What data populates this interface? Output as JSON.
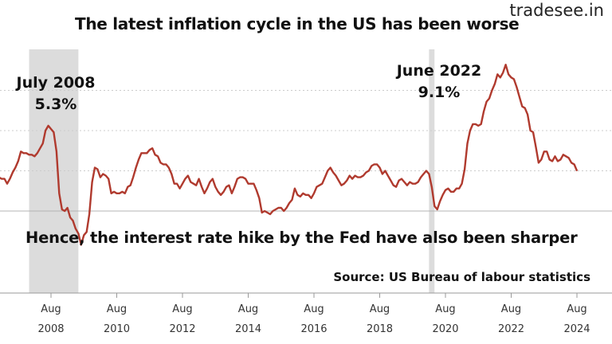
{
  "brand": "tradesee.in",
  "chart_data": {
    "type": "line",
    "title": "The latest inflation cycle in the US has been worse",
    "subtitle": "Hence, the interest rate hike by the Fed have also been sharper",
    "source": "Source: US Bureau of labour statistics",
    "xlabel": "",
    "ylabel": "",
    "x_tick_labels": [
      {
        "month": "Aug",
        "year": "2008"
      },
      {
        "month": "Aug",
        "year": "2010"
      },
      {
        "month": "Aug",
        "year": "2012"
      },
      {
        "month": "Aug",
        "year": "2014"
      },
      {
        "month": "Aug",
        "year": "2016"
      },
      {
        "month": "Aug",
        "year": "2018"
      },
      {
        "month": "Aug",
        "year": "2020"
      },
      {
        "month": "Aug",
        "year": "2022"
      },
      {
        "month": "Aug",
        "year": "2024"
      }
    ],
    "xlim": [
      "2006-11",
      "2024-12"
    ],
    "ylim": [
      -2.5,
      10
    ],
    "y_gridlines": [
      0,
      2.5,
      5.0,
      7.5
    ],
    "line_color": "#b03a2e",
    "shaded_periods": [
      {
        "start": "2007-12",
        "end": "2009-06"
      },
      {
        "start": "2020-02",
        "end": "2020-04"
      }
    ],
    "annotations": [
      {
        "period": "July 2008",
        "value_label": "5.3%"
      },
      {
        "period": "June 2022",
        "value_label": "9.1%"
      }
    ],
    "series": [
      {
        "points": [
          [
            "2006-11",
            1.8
          ],
          [
            "2006-12",
            2.0
          ],
          [
            "2007-01",
            2.1
          ],
          [
            "2007-02",
            2.0
          ],
          [
            "2007-03",
            2.0
          ],
          [
            "2007-04",
            1.7
          ],
          [
            "2007-05",
            2.0
          ],
          [
            "2007-06",
            2.4
          ],
          [
            "2007-07",
            2.7
          ],
          [
            "2007-08",
            3.1
          ],
          [
            "2007-09",
            3.7
          ],
          [
            "2007-10",
            3.6
          ],
          [
            "2007-11",
            3.6
          ],
          [
            "2007-12",
            3.5
          ],
          [
            "2008-01",
            3.5
          ],
          [
            "2008-02",
            3.4
          ],
          [
            "2008-03",
            3.6
          ],
          [
            "2008-04",
            3.9
          ],
          [
            "2008-05",
            4.2
          ],
          [
            "2008-06",
            5.0
          ],
          [
            "2008-07",
            5.3
          ],
          [
            "2008-08",
            5.1
          ],
          [
            "2008-09",
            4.9
          ],
          [
            "2008-10",
            3.7
          ],
          [
            "2008-11",
            1.1
          ],
          [
            "2008-12",
            0.1
          ],
          [
            "2009-01",
            0.0
          ],
          [
            "2009-02",
            0.2
          ],
          [
            "2009-03",
            -0.4
          ],
          [
            "2009-04",
            -0.6
          ],
          [
            "2009-05",
            -1.1
          ],
          [
            "2009-06",
            -1.4
          ],
          [
            "2009-07",
            -2.1
          ],
          [
            "2009-08",
            -1.5
          ],
          [
            "2009-09",
            -1.3
          ],
          [
            "2009-10",
            -0.2
          ],
          [
            "2009-11",
            1.8
          ],
          [
            "2009-12",
            2.7
          ],
          [
            "2010-01",
            2.6
          ],
          [
            "2010-02",
            2.1
          ],
          [
            "2010-03",
            2.3
          ],
          [
            "2010-04",
            2.2
          ],
          [
            "2010-05",
            2.0
          ],
          [
            "2010-06",
            1.1
          ],
          [
            "2010-07",
            1.2
          ],
          [
            "2010-08",
            1.1
          ],
          [
            "2010-09",
            1.1
          ],
          [
            "2010-10",
            1.2
          ],
          [
            "2010-11",
            1.1
          ],
          [
            "2010-12",
            1.5
          ],
          [
            "2011-01",
            1.6
          ],
          [
            "2011-02",
            2.1
          ],
          [
            "2011-03",
            2.7
          ],
          [
            "2011-04",
            3.2
          ],
          [
            "2011-05",
            3.6
          ],
          [
            "2011-06",
            3.6
          ],
          [
            "2011-07",
            3.6
          ],
          [
            "2011-08",
            3.8
          ],
          [
            "2011-09",
            3.9
          ],
          [
            "2011-10",
            3.5
          ],
          [
            "2011-11",
            3.4
          ],
          [
            "2011-12",
            3.0
          ],
          [
            "2012-01",
            2.9
          ],
          [
            "2012-02",
            2.9
          ],
          [
            "2012-03",
            2.7
          ],
          [
            "2012-04",
            2.3
          ],
          [
            "2012-05",
            1.7
          ],
          [
            "2012-06",
            1.7
          ],
          [
            "2012-07",
            1.4
          ],
          [
            "2012-08",
            1.7
          ],
          [
            "2012-09",
            2.0
          ],
          [
            "2012-10",
            2.2
          ],
          [
            "2012-11",
            1.8
          ],
          [
            "2012-12",
            1.7
          ],
          [
            "2013-01",
            1.6
          ],
          [
            "2013-02",
            2.0
          ],
          [
            "2013-03",
            1.5
          ],
          [
            "2013-04",
            1.1
          ],
          [
            "2013-05",
            1.4
          ],
          [
            "2013-06",
            1.8
          ],
          [
            "2013-07",
            2.0
          ],
          [
            "2013-08",
            1.5
          ],
          [
            "2013-09",
            1.2
          ],
          [
            "2013-10",
            1.0
          ],
          [
            "2013-11",
            1.2
          ],
          [
            "2013-12",
            1.5
          ],
          [
            "2014-01",
            1.6
          ],
          [
            "2014-02",
            1.1
          ],
          [
            "2014-03",
            1.5
          ],
          [
            "2014-04",
            2.0
          ],
          [
            "2014-05",
            2.1
          ],
          [
            "2014-06",
            2.1
          ],
          [
            "2014-07",
            2.0
          ],
          [
            "2014-08",
            1.7
          ],
          [
            "2014-09",
            1.7
          ],
          [
            "2014-10",
            1.7
          ],
          [
            "2014-11",
            1.3
          ],
          [
            "2014-12",
            0.8
          ],
          [
            "2015-01",
            -0.1
          ],
          [
            "2015-02",
            0.0
          ],
          [
            "2015-03",
            -0.1
          ],
          [
            "2015-04",
            -0.2
          ],
          [
            "2015-05",
            0.0
          ],
          [
            "2015-06",
            0.1
          ],
          [
            "2015-07",
            0.2
          ],
          [
            "2015-08",
            0.2
          ],
          [
            "2015-09",
            0.0
          ],
          [
            "2015-10",
            0.2
          ],
          [
            "2015-11",
            0.5
          ],
          [
            "2015-12",
            0.7
          ],
          [
            "2016-01",
            1.4
          ],
          [
            "2016-02",
            1.0
          ],
          [
            "2016-03",
            0.9
          ],
          [
            "2016-04",
            1.1
          ],
          [
            "2016-05",
            1.0
          ],
          [
            "2016-06",
            1.0
          ],
          [
            "2016-07",
            0.8
          ],
          [
            "2016-08",
            1.1
          ],
          [
            "2016-09",
            1.5
          ],
          [
            "2016-10",
            1.6
          ],
          [
            "2016-11",
            1.7
          ],
          [
            "2016-12",
            2.1
          ],
          [
            "2017-01",
            2.5
          ],
          [
            "2017-02",
            2.7
          ],
          [
            "2017-03",
            2.4
          ],
          [
            "2017-04",
            2.2
          ],
          [
            "2017-05",
            1.9
          ],
          [
            "2017-06",
            1.6
          ],
          [
            "2017-07",
            1.7
          ],
          [
            "2017-08",
            1.9
          ],
          [
            "2017-09",
            2.2
          ],
          [
            "2017-10",
            2.0
          ],
          [
            "2017-11",
            2.2
          ],
          [
            "2017-12",
            2.1
          ],
          [
            "2018-01",
            2.1
          ],
          [
            "2018-02",
            2.2
          ],
          [
            "2018-03",
            2.4
          ],
          [
            "2018-04",
            2.5
          ],
          [
            "2018-05",
            2.8
          ],
          [
            "2018-06",
            2.9
          ],
          [
            "2018-07",
            2.9
          ],
          [
            "2018-08",
            2.7
          ],
          [
            "2018-09",
            2.3
          ],
          [
            "2018-10",
            2.5
          ],
          [
            "2018-11",
            2.2
          ],
          [
            "2018-12",
            1.9
          ],
          [
            "2019-01",
            1.6
          ],
          [
            "2019-02",
            1.5
          ],
          [
            "2019-03",
            1.9
          ],
          [
            "2019-04",
            2.0
          ],
          [
            "2019-05",
            1.8
          ],
          [
            "2019-06",
            1.6
          ],
          [
            "2019-07",
            1.8
          ],
          [
            "2019-08",
            1.7
          ],
          [
            "2019-09",
            1.7
          ],
          [
            "2019-10",
            1.8
          ],
          [
            "2019-11",
            2.1
          ],
          [
            "2019-12",
            2.3
          ],
          [
            "2020-01",
            2.5
          ],
          [
            "2020-02",
            2.3
          ],
          [
            "2020-03",
            1.5
          ],
          [
            "2020-04",
            0.3
          ],
          [
            "2020-05",
            0.1
          ],
          [
            "2020-06",
            0.6
          ],
          [
            "2020-07",
            1.0
          ],
          [
            "2020-08",
            1.3
          ],
          [
            "2020-09",
            1.4
          ],
          [
            "2020-10",
            1.2
          ],
          [
            "2020-11",
            1.2
          ],
          [
            "2020-12",
            1.4
          ],
          [
            "2021-01",
            1.4
          ],
          [
            "2021-02",
            1.7
          ],
          [
            "2021-03",
            2.6
          ],
          [
            "2021-04",
            4.2
          ],
          [
            "2021-05",
            5.0
          ],
          [
            "2021-06",
            5.4
          ],
          [
            "2021-07",
            5.4
          ],
          [
            "2021-08",
            5.3
          ],
          [
            "2021-09",
            5.4
          ],
          [
            "2021-10",
            6.2
          ],
          [
            "2021-11",
            6.8
          ],
          [
            "2021-12",
            7.0
          ],
          [
            "2022-01",
            7.5
          ],
          [
            "2022-02",
            7.9
          ],
          [
            "2022-03",
            8.5
          ],
          [
            "2022-04",
            8.3
          ],
          [
            "2022-05",
            8.6
          ],
          [
            "2022-06",
            9.1
          ],
          [
            "2022-07",
            8.5
          ],
          [
            "2022-08",
            8.3
          ],
          [
            "2022-09",
            8.2
          ],
          [
            "2022-10",
            7.7
          ],
          [
            "2022-11",
            7.1
          ],
          [
            "2022-12",
            6.5
          ],
          [
            "2023-01",
            6.4
          ],
          [
            "2023-02",
            6.0
          ],
          [
            "2023-03",
            5.0
          ],
          [
            "2023-04",
            4.9
          ],
          [
            "2023-05",
            4.0
          ],
          [
            "2023-06",
            3.0
          ],
          [
            "2023-07",
            3.2
          ],
          [
            "2023-08",
            3.7
          ],
          [
            "2023-09",
            3.7
          ],
          [
            "2023-10",
            3.2
          ],
          [
            "2023-11",
            3.1
          ],
          [
            "2023-12",
            3.4
          ],
          [
            "2024-01",
            3.1
          ],
          [
            "2024-02",
            3.2
          ],
          [
            "2024-03",
            3.5
          ],
          [
            "2024-04",
            3.4
          ],
          [
            "2024-05",
            3.3
          ],
          [
            "2024-06",
            3.0
          ],
          [
            "2024-07",
            2.9
          ],
          [
            "2024-08",
            2.5
          ]
        ]
      }
    ]
  }
}
